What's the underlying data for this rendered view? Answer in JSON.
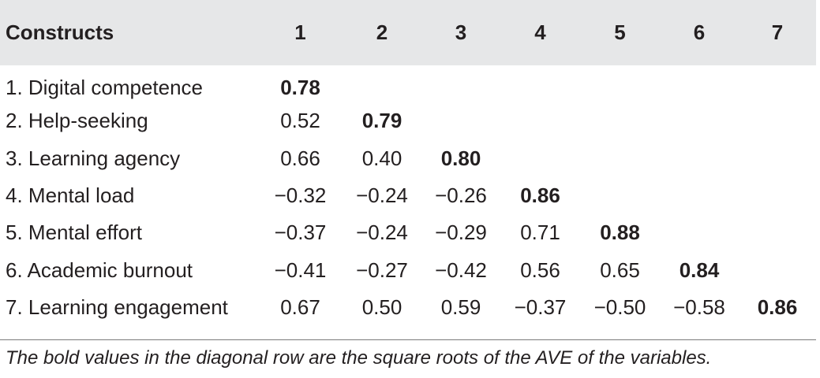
{
  "table": {
    "headers": [
      "Constructs",
      "1",
      "2",
      "3",
      "4",
      "5",
      "6",
      "7"
    ],
    "rows": [
      {
        "label": "1. Digital competence",
        "cells": [
          "0.78",
          "",
          "",
          "",
          "",
          "",
          ""
        ]
      },
      {
        "label": "2. Help-seeking",
        "cells": [
          "0.52",
          "0.79",
          "",
          "",
          "",
          "",
          ""
        ]
      },
      {
        "label": "3. Learning agency",
        "cells": [
          "0.66",
          "0.40",
          "0.80",
          "",
          "",
          "",
          ""
        ]
      },
      {
        "label": "4. Mental load",
        "cells": [
          "−0.32",
          "−0.24",
          "−0.26",
          "0.86",
          "",
          "",
          ""
        ]
      },
      {
        "label": "5. Mental effort",
        "cells": [
          "−0.37",
          "−0.24",
          "−0.29",
          "0.71",
          "0.88",
          "",
          ""
        ]
      },
      {
        "label": "6. Academic burnout",
        "cells": [
          "−0.41",
          "−0.27",
          "−0.42",
          "0.56",
          "0.65",
          "0.84",
          ""
        ]
      },
      {
        "label": "7. Learning engagement",
        "cells": [
          "0.67",
          "0.50",
          "0.59",
          "−0.37",
          "−0.50",
          "−0.58",
          "0.86"
        ]
      }
    ],
    "note": "The bold values in the diagonal row are the square roots of the AVE of the variables."
  },
  "colors": {
    "header_background": "#e6e7e8",
    "text": "#231f20"
  }
}
